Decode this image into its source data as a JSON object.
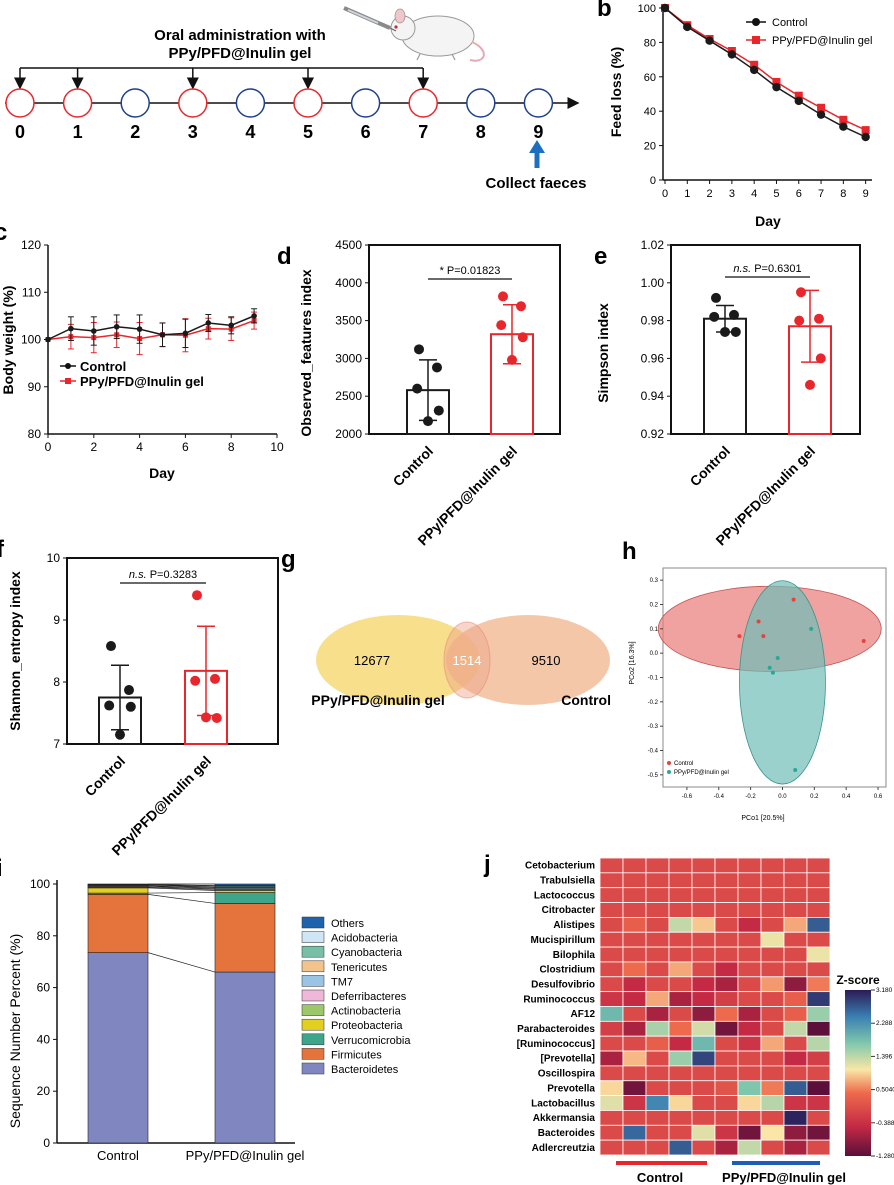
{
  "palette": {
    "red": "#e8262b",
    "blue": "#1d3f8f",
    "black": "#1a1a1a",
    "arrow_blue": "#1d6fc0",
    "venn_left": "#f5d872",
    "venn_right": "#f0b48c",
    "ellipse_red": "#e87a78",
    "ellipse_teal": "#6fbdb6"
  },
  "panel_a": {
    "title_line1": "Oral administration with",
    "title_line2": "PPy/PFD@Inulin gel",
    "days": [
      "0",
      "1",
      "2",
      "3",
      "4",
      "5",
      "6",
      "7",
      "8",
      "9"
    ],
    "dosing_days": [
      0,
      1,
      3,
      5,
      7
    ],
    "arrow_days": [
      0,
      1,
      3,
      5,
      7
    ],
    "collect_label": "Collect faeces"
  },
  "panel_b": {
    "letter": "b",
    "chart_data": {
      "type": "line",
      "ylabel": "Feed loss (%)",
      "xlabel": "Day",
      "x": [
        0,
        1,
        2,
        3,
        4,
        5,
        6,
        7,
        8,
        9
      ],
      "xticks": [
        "0",
        "1",
        "2",
        "3",
        "4",
        "5",
        "6",
        "7",
        "8",
        "9"
      ],
      "yticks": [
        "0",
        "20",
        "40",
        "60",
        "80",
        "100"
      ],
      "ylim": [
        0,
        100
      ],
      "series": [
        {
          "name": "Control",
          "values": [
            100,
            89,
            81,
            73,
            64,
            54,
            46,
            38,
            31,
            25
          ]
        },
        {
          "name": "PPy/PFD@Inulin gel",
          "values": [
            100,
            90,
            82,
            75,
            67,
            57,
            49,
            42,
            35,
            29
          ]
        }
      ]
    }
  },
  "panel_c": {
    "letter": "c",
    "chart_data": {
      "type": "line",
      "ylabel": "Body weight (%)",
      "xlabel": "Day",
      "x": [
        0,
        1,
        2,
        3,
        4,
        5,
        6,
        7,
        8,
        9
      ],
      "xticks": [
        "0",
        "2",
        "4",
        "6",
        "8",
        "10"
      ],
      "yticks": [
        "80",
        "90",
        "100",
        "110",
        "120"
      ],
      "xlim": [
        0,
        10
      ],
      "ylim": [
        80,
        120
      ],
      "series": [
        {
          "name": "Control",
          "values": [
            100,
            102.3,
            101.8,
            102.7,
            102.2,
            101.0,
            101.3,
            103.5,
            103.0,
            105.0
          ],
          "err": [
            0,
            2.5,
            3,
            2.5,
            3,
            2.5,
            3,
            1.8,
            1.8,
            1.5
          ]
        },
        {
          "name": "PPy/PFD@Inulin gel",
          "values": [
            100,
            100.6,
            100.4,
            101.0,
            100.2,
            101.0,
            100.9,
            102.3,
            102.2,
            104.0
          ],
          "err": [
            0,
            2.6,
            3.2,
            2.7,
            3.4,
            2.5,
            3.5,
            2.2,
            2.4,
            1.8
          ]
        }
      ]
    }
  },
  "panel_d": {
    "letter": "d",
    "chart_data": {
      "type": "bar",
      "ylabel": "Observed_features index",
      "categories": [
        "Control",
        "PPy/PFD@Inulin gel"
      ],
      "values": [
        2580,
        3320
      ],
      "err": [
        400,
        390
      ],
      "points": [
        [
          3120,
          2880,
          2600,
          2310,
          2170
        ],
        [
          3820,
          3690,
          3440,
          3280,
          2980
        ]
      ],
      "yticks": [
        "2000",
        "2500",
        "3000",
        "3500",
        "4000",
        "4500"
      ],
      "ylim": [
        2000,
        4500
      ],
      "annotation": "* P=0.01823"
    }
  },
  "panel_e": {
    "letter": "e",
    "chart_data": {
      "type": "bar",
      "ylabel": "Simpson index",
      "categories": [
        "Control",
        "PPy/PFD@Inulin gel"
      ],
      "values": [
        0.981,
        0.977
      ],
      "err": [
        0.007,
        0.019
      ],
      "points": [
        [
          0.992,
          0.983,
          0.982,
          0.974,
          0.974
        ],
        [
          0.995,
          0.981,
          0.98,
          0.96,
          0.946
        ]
      ],
      "yticks": [
        "0.92",
        "0.94",
        "0.96",
        "0.98",
        "1.00",
        "1.02"
      ],
      "ylim": [
        0.92,
        1.02
      ],
      "annotation_ns": "n.s.",
      "annotation_p": "P=0.6301"
    }
  },
  "panel_f": {
    "letter": "f",
    "chart_data": {
      "type": "bar",
      "ylabel": "Shannon_entropy index",
      "categories": [
        "Control",
        "PPy/PFD@Inulin gel"
      ],
      "values": [
        7.75,
        8.18
      ],
      "err": [
        0.52,
        0.72
      ],
      "points": [
        [
          8.58,
          7.87,
          7.62,
          7.6,
          7.15
        ],
        [
          9.4,
          8.05,
          8.02,
          7.42,
          7.43
        ]
      ],
      "yticks": [
        "7",
        "8",
        "9",
        "10"
      ],
      "ylim": [
        7,
        10
      ],
      "annotation_ns": "n.s.",
      "annotation_p": "P=0.3283"
    }
  },
  "panel_g": {
    "letter": "g",
    "left_count": "12677",
    "overlap_count": "1514",
    "right_count": "9510",
    "left_label": "PPy/PFD@Inulin gel",
    "right_label": "Control"
  },
  "panel_h": {
    "letter": "h",
    "chart_data": {
      "type": "scatter",
      "xlabel": "PCo1 [20.5%]",
      "ylabel": "PCo2 [16.3%]",
      "xticks": [
        "-0.6",
        "-0.4",
        "-0.2",
        "0.0",
        "0.2",
        "0.4",
        "0.6"
      ],
      "yticks": [
        "-0.5",
        "-0.4",
        "-0.3",
        "-0.2",
        "-0.1",
        "0.0",
        "0.1",
        "0.2",
        "0.3"
      ],
      "xlim": [
        -0.75,
        0.65
      ],
      "ylim": [
        -0.55,
        0.35
      ],
      "series": [
        {
          "name": "Control",
          "points": [
            [
              0.07,
              0.22
            ],
            [
              -0.15,
              0.13
            ],
            [
              -0.27,
              0.07
            ],
            [
              -0.12,
              0.07
            ],
            [
              0.51,
              0.05
            ]
          ]
        },
        {
          "name": "PPy/PFD@Inulin gel",
          "points": [
            [
              0.18,
              0.1
            ],
            [
              -0.03,
              -0.02
            ],
            [
              -0.08,
              -0.06
            ],
            [
              -0.06,
              -0.08
            ],
            [
              0.08,
              -0.48
            ]
          ]
        }
      ]
    }
  },
  "panel_i": {
    "letter": "i",
    "chart_data": {
      "type": "bar",
      "stacked": true,
      "ylabel": "Sequence Number Percent (%)",
      "categories": [
        "Control",
        "PPy/PFD@Inulin gel"
      ],
      "yticks": [
        "0",
        "20",
        "40",
        "60",
        "80",
        "100"
      ],
      "ylim": [
        0,
        100
      ],
      "series": [
        {
          "name": "Bacteroidetes",
          "color": "#8087c0",
          "values": [
            73.5,
            66
          ]
        },
        {
          "name": "Firmicutes",
          "color": "#e5733c",
          "values": [
            22.5,
            26.5
          ]
        },
        {
          "name": "Verrucomicrobia",
          "color": "#3ca58a",
          "values": [
            0.5,
            4.2
          ]
        },
        {
          "name": "Proteobacteria",
          "color": "#e3cf20",
          "values": [
            2.0,
            0.8
          ]
        },
        {
          "name": "Actinobacteria",
          "color": "#9cc86a",
          "values": [
            0.3,
            0.4
          ]
        },
        {
          "name": "Deferribacteres",
          "color": "#f0b8d8",
          "values": [
            0.3,
            0.3
          ]
        },
        {
          "name": "TM7",
          "color": "#99c4e6",
          "values": [
            0.2,
            0.4
          ]
        },
        {
          "name": "Tenericutes",
          "color": "#f2c48c",
          "values": [
            0.3,
            0.3
          ]
        },
        {
          "name": "Cyanobacteria",
          "color": "#78bfa8",
          "values": [
            0.1,
            0.4
          ]
        },
        {
          "name": "Acidobacteria",
          "color": "#cfe6f6",
          "values": [
            0.1,
            0.1
          ]
        },
        {
          "name": "Others",
          "color": "#1f63ad",
          "values": [
            0.2,
            0.6
          ]
        }
      ]
    }
  },
  "panel_j": {
    "letter": "j",
    "zscore_title": "Z-score",
    "colorbar_ticks": [
      "3.180",
      "2.288",
      "1.396",
      "0.5040",
      "-0.3880",
      "-1.280"
    ],
    "group_labels": [
      "Control",
      "PPy/PFD@Inulin gel"
    ],
    "chart_data": {
      "type": "heatmap",
      "rows": [
        "Cetobacterium",
        "Trabulsiella",
        "Lactococcus",
        "Citrobacter",
        "Alistipes",
        "Mucispirillum",
        "Bilophila",
        "Clostridium",
        "Desulfovibrio",
        "Ruminococcus",
        "AF12",
        "Parabacteroides",
        "[Ruminococcus]",
        "[Prevotella]",
        "Oscillospira",
        "Prevotella",
        "Lactobacillus",
        "Akkermansia",
        "Bacteroides",
        "Adlercreutzia"
      ],
      "columns": 10,
      "values": [
        [
          -0.6,
          -0.6,
          -0.6,
          -0.6,
          -0.6,
          -0.6,
          -0.6,
          -0.6,
          -0.6,
          -0.6
        ],
        [
          -0.6,
          -0.6,
          -0.6,
          -0.6,
          -0.6,
          -0.6,
          -0.6,
          -0.6,
          -0.6,
          -0.6
        ],
        [
          -0.6,
          -0.6,
          -0.6,
          -0.6,
          -0.6,
          -0.6,
          -0.6,
          -0.6,
          -0.6,
          -0.6
        ],
        [
          -0.6,
          -0.6,
          -0.6,
          -0.6,
          -0.6,
          -0.6,
          -0.6,
          -0.6,
          -0.6,
          -0.6
        ],
        [
          -0.6,
          -0.4,
          -0.6,
          0.9,
          0.3,
          -0.6,
          -0.9,
          -0.6,
          0.1,
          2.6
        ],
        [
          -0.6,
          -0.6,
          -0.6,
          -0.6,
          -0.6,
          -0.6,
          -0.6,
          0.6,
          -0.6,
          -0.6
        ],
        [
          -0.6,
          -0.6,
          -0.6,
          -0.6,
          -0.6,
          -0.6,
          -0.6,
          -0.6,
          -0.6,
          0.6
        ],
        [
          -0.6,
          -0.3,
          -0.6,
          0.1,
          -0.6,
          -0.9,
          -0.6,
          -0.6,
          -0.6,
          -0.6
        ],
        [
          -0.6,
          -0.9,
          -0.6,
          -0.6,
          -0.9,
          -1.0,
          -0.6,
          0.0,
          -1.1,
          -0.2
        ],
        [
          -0.8,
          -0.9,
          0.1,
          -1.0,
          -0.9,
          -0.7,
          -0.6,
          -0.6,
          -0.4,
          2.9
        ],
        [
          1.6,
          -0.6,
          -1.0,
          -0.6,
          -1.1,
          -0.3,
          -1.0,
          -0.6,
          -0.4,
          1.2
        ],
        [
          -0.7,
          -1.0,
          1.1,
          -0.3,
          0.8,
          -1.2,
          -0.9,
          -0.6,
          0.9,
          -1.3
        ],
        [
          -0.6,
          -0.6,
          -0.4,
          -0.9,
          1.6,
          -0.6,
          -0.8,
          0.1,
          -0.6,
          1.0
        ],
        [
          -1.0,
          0.2,
          -0.6,
          1.2,
          2.8,
          -0.6,
          -0.6,
          -0.6,
          -0.9,
          -0.7
        ],
        [
          -0.6,
          -0.6,
          -0.6,
          -0.6,
          -0.6,
          -0.6,
          -0.6,
          -0.6,
          -0.6,
          -0.6
        ],
        [
          0.4,
          -1.2,
          -0.6,
          -0.6,
          -0.6,
          -0.5,
          1.4,
          -0.2,
          2.6,
          -1.3
        ],
        [
          0.7,
          -0.8,
          2.2,
          0.4,
          -0.6,
          -0.6,
          0.4,
          1.0,
          -0.8,
          -0.8
        ],
        [
          -0.6,
          -0.6,
          -0.6,
          -0.6,
          -0.6,
          -0.6,
          -0.6,
          -0.6,
          3.1,
          -0.6
        ],
        [
          -0.6,
          2.5,
          -0.6,
          -0.6,
          0.7,
          -0.8,
          -1.2,
          0.5,
          -1.1,
          -1.2
        ],
        [
          -0.6,
          -0.6,
          -0.6,
          2.6,
          -0.6,
          -1.0,
          0.9,
          -0.6,
          -1.0,
          -0.6
        ]
      ]
    }
  }
}
